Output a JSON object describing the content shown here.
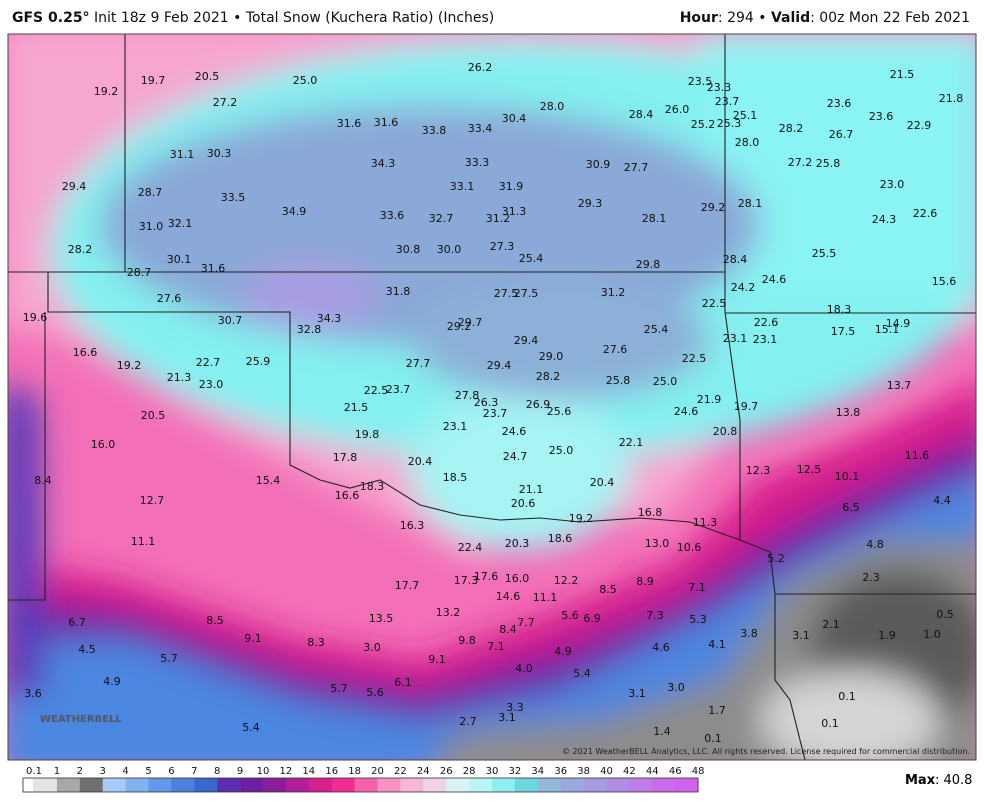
{
  "header": {
    "model": "GFS 0.25°",
    "title": "Init 18z 9 Feb 2021 • Total Snow (Kuchera Ratio) (Inches)",
    "hour_key": "Hour",
    "hour_rest": ": 294 • ",
    "valid_key": "Valid",
    "valid_rest": ": 00z Mon 22 Feb 2021"
  },
  "map": {
    "labels": [
      "19.2",
      "19.7",
      "20.5",
      "25.0",
      "26.2",
      "23.5",
      "23.3",
      "21.5",
      "21.8",
      "27.2",
      "23.7",
      "23.6",
      "25.1",
      "31.6",
      "31.6",
      "33.8",
      "33.4",
      "30.4",
      "28.0",
      "28.4",
      "26.0",
      "25.2",
      "25.3",
      "23.6",
      "22.9",
      "28.2",
      "26.7",
      "28.0",
      "31.1",
      "30.3",
      "34.3",
      "33.3",
      "30.9",
      "27.7",
      "27.2",
      "25.8",
      "29.4",
      "28.7",
      "33.5",
      "33.1",
      "31.9",
      "23.0",
      "34.9",
      "33.6",
      "32.7",
      "31.2",
      "31.3",
      "29.3",
      "28.1",
      "29.2",
      "28.1",
      "22.6",
      "24.3",
      "31.0",
      "32.1",
      "30.8",
      "30.0",
      "27.3",
      "28.2",
      "25.5",
      "30.1",
      "28.4",
      "25.4",
      "29.8",
      "28.7",
      "31.6",
      "24.6",
      "15.6",
      "24.2",
      "31.8",
      "27.5",
      "27.5",
      "31.2",
      "27.6",
      "22.5",
      "18.3",
      "19.6",
      "30.7",
      "34.3",
      "32.8",
      "29.2",
      "29.7",
      "22.6",
      "14.9",
      "15.1",
      "17.5",
      "25.4",
      "23.1",
      "23.1",
      "16.6",
      "29.4",
      "27.6",
      "29.0",
      "22.5",
      "19.2",
      "22.7",
      "25.9",
      "27.7",
      "29.4",
      "21.3",
      "28.2",
      "25.8",
      "25.0",
      "13.7",
      "23.0",
      "22.5",
      "23.7",
      "27.8",
      "26.3",
      "21.9",
      "19.7",
      "24.6",
      "21.5",
      "26.9",
      "25.6",
      "23.7",
      "13.8",
      "20.5",
      "23.1",
      "24.6",
      "20.8",
      "19.8",
      "16.0",
      "22.1",
      "25.0",
      "11.6",
      "17.8",
      "20.4",
      "24.7",
      "12.3",
      "12.5",
      "10.1",
      "8.4",
      "18.5",
      "15.4",
      "20.4",
      "18.3",
      "21.1",
      "16.6",
      "12.7",
      "20.6",
      "4.4",
      "6.5",
      "16.8",
      "19.2",
      "16.3",
      "11.3",
      "18.6",
      "11.1",
      "20.3",
      "22.4",
      "13.0",
      "10.6",
      "4.8",
      "5.2",
      "17.6",
      "16.0",
      "17.3",
      "12.2",
      "8.9",
      "17.7",
      "8.5",
      "7.1",
      "2.3",
      "14.6",
      "11.1",
      "6.7",
      "8.5",
      "13.5",
      "13.2",
      "5.6",
      "6.9",
      "7.3",
      "5.3",
      "0.5",
      "7.7",
      "8.4",
      "2.1",
      "9.1",
      "3.8",
      "3.1",
      "1.9",
      "1.0",
      "9.8",
      "8.3",
      "7.1",
      "4.6",
      "4.1",
      "4.5",
      "3.0",
      "4.9",
      "5.7",
      "9.1",
      "4.0",
      "5.4",
      "4.9",
      "6.1",
      "5.7",
      "5.6",
      "3.0",
      "3.1",
      "0.1",
      "3.6",
      "3.3",
      "1.7",
      "3.1",
      "2.7",
      "5.4",
      "1.4",
      "0.1",
      "0.1"
    ],
    "copyright": "© 2021 WeatherBELL Analytics, LLC. All rights reserved. License required for commercial distribution.",
    "logo": "WEATHERBELL"
  },
  "colorbar": {
    "ticks": [
      "0.1",
      "1",
      "2",
      "3",
      "4",
      "5",
      "6",
      "7",
      "8",
      "9",
      "10",
      "12",
      "14",
      "16",
      "18",
      "20",
      "22",
      "24",
      "26",
      "28",
      "30",
      "32",
      "34",
      "36",
      "38",
      "40",
      "42",
      "44",
      "46",
      "48"
    ],
    "colors": [
      "#e4e4e4",
      "#a8a8a8",
      "#707070",
      "#a6c9f5",
      "#82b2f0",
      "#6299e8",
      "#4c82de",
      "#3b68d0",
      "#5b2eb0",
      "#6b20a2",
      "#8a1f9c",
      "#b01f99",
      "#d62090",
      "#f02c91",
      "#f662a9",
      "#f892c2",
      "#f5b8d5",
      "#f0d3e6",
      "#d8f2f6",
      "#b8f6f6",
      "#90eef0",
      "#6ad8e0",
      "#92b9d9",
      "#9aaade",
      "#a49ce2",
      "#b18ce2",
      "#c07ce8",
      "#c86ce8",
      "#d062f0"
    ],
    "max_key": "Max",
    "max_rest": ": 40.8"
  }
}
